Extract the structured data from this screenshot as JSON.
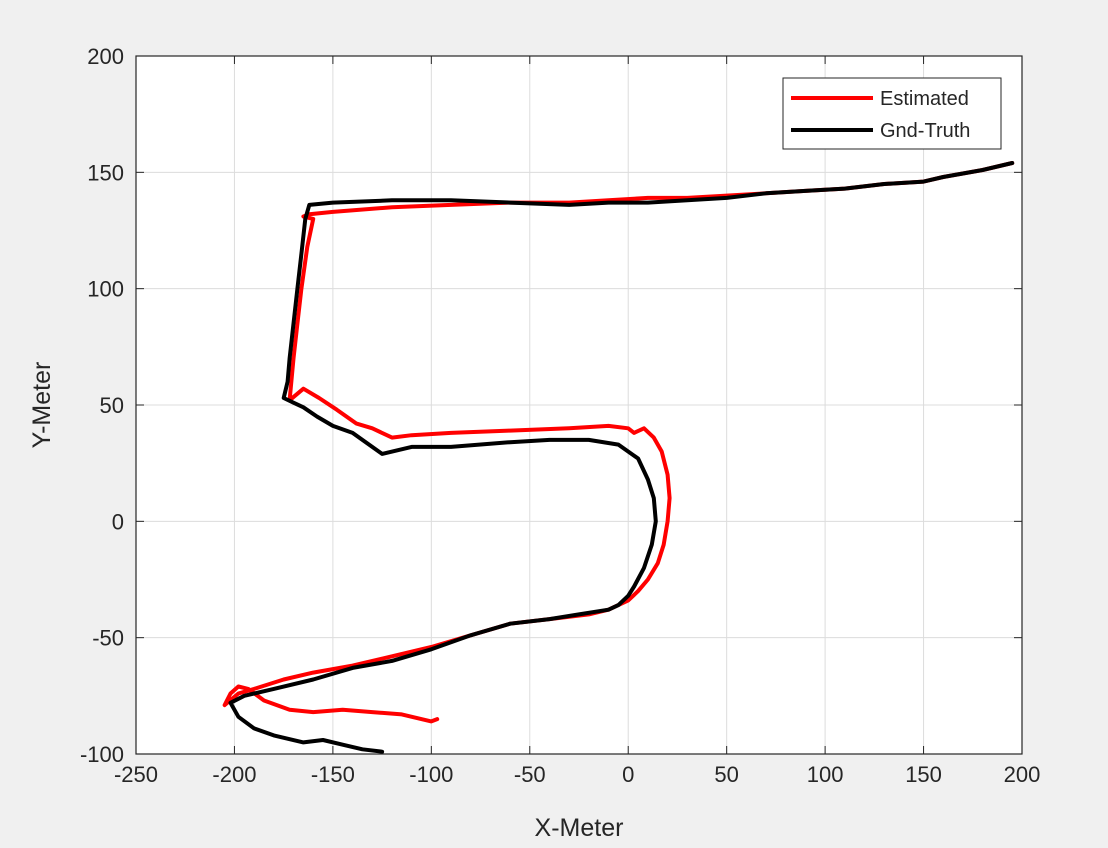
{
  "chart_data": {
    "type": "line",
    "title": "",
    "xlabel": "X-Meter",
    "ylabel": "Y-Meter",
    "xlim": [
      -250,
      200
    ],
    "ylim": [
      -100,
      200
    ],
    "xticks": [
      -250,
      -200,
      -150,
      -100,
      -50,
      0,
      50,
      100,
      150,
      200
    ],
    "yticks": [
      -100,
      -50,
      0,
      50,
      100,
      150,
      200
    ],
    "xtick_labels": [
      "-250",
      "-200",
      "-150",
      "-100",
      "-50",
      "0",
      "50",
      "100",
      "150",
      "200"
    ],
    "ytick_labels": [
      "-100",
      "-50",
      "0",
      "50",
      "100",
      "150",
      "200"
    ],
    "grid": true,
    "legend_position": "top-right",
    "series": [
      {
        "name": "Estimated",
        "color": "#ff0000",
        "x": [
          195,
          180,
          160,
          150,
          130,
          110,
          90,
          70,
          50,
          30,
          10,
          -10,
          -30,
          -60,
          -90,
          -120,
          -150,
          -162,
          -165,
          -160,
          -163,
          -166,
          -168,
          -170,
          -172,
          -165,
          -157,
          -148,
          -138,
          -130,
          -120,
          -110,
          -90,
          -60,
          -30,
          -10,
          0,
          3,
          8,
          13,
          17,
          20,
          21,
          20,
          18,
          15,
          10,
          5,
          0,
          -10,
          -20,
          -40,
          -60,
          -80,
          -100,
          -120,
          -140,
          -160,
          -175,
          -190,
          -198,
          -205,
          -202,
          -198,
          -193,
          -185,
          -172,
          -160,
          -145,
          -130,
          -115,
          -100,
          -97
        ],
        "y": [
          154,
          151,
          148,
          146,
          145,
          143,
          142,
          141,
          140,
          139,
          139,
          138,
          137,
          137,
          136,
          135,
          133,
          132,
          131,
          130,
          118,
          100,
          85,
          70,
          52,
          57,
          53,
          48,
          42,
          40,
          36,
          37,
          38,
          39,
          40,
          41,
          40,
          38,
          40,
          36,
          30,
          20,
          10,
          0,
          -10,
          -18,
          -25,
          -30,
          -34,
          -38,
          -40,
          -42,
          -44,
          -49,
          -54,
          -58,
          -62,
          -65,
          -68,
          -72,
          -74,
          -79,
          -74,
          -71,
          -72,
          -77,
          -81,
          -82,
          -81,
          -82,
          -83,
          -86,
          -85
        ]
      },
      {
        "name": "Gnd-Truth",
        "color": "#000000",
        "x": [
          195,
          180,
          160,
          150,
          130,
          110,
          90,
          70,
          50,
          30,
          10,
          -10,
          -30,
          -60,
          -90,
          -120,
          -150,
          -162,
          -164,
          -166,
          -168,
          -170,
          -172,
          -173,
          -175,
          -170,
          -165,
          -158,
          -150,
          -140,
          -135,
          -125,
          -110,
          -90,
          -60,
          -40,
          -20,
          -5,
          5,
          10,
          13,
          14,
          12,
          8,
          3,
          0,
          -5,
          -10,
          -25,
          -40,
          -60,
          -80,
          -100,
          -120,
          -140,
          -160,
          -180,
          -195,
          -202,
          -198,
          -190,
          -180,
          -165,
          -155,
          -145,
          -135,
          -125
        ],
        "y": [
          154,
          151,
          148,
          146,
          145,
          143,
          142,
          141,
          139,
          138,
          137,
          137,
          136,
          137,
          138,
          138,
          137,
          136,
          130,
          115,
          100,
          85,
          70,
          60,
          53,
          51,
          49,
          45,
          41,
          38,
          35,
          29,
          32,
          32,
          34,
          35,
          35,
          33,
          27,
          18,
          10,
          0,
          -10,
          -20,
          -28,
          -32,
          -36,
          -38,
          -40,
          -42,
          -44,
          -49,
          -55,
          -60,
          -63,
          -68,
          -72,
          -75,
          -78,
          -84,
          -89,
          -92,
          -95,
          -94,
          -96,
          -98,
          -99
        ]
      }
    ]
  }
}
